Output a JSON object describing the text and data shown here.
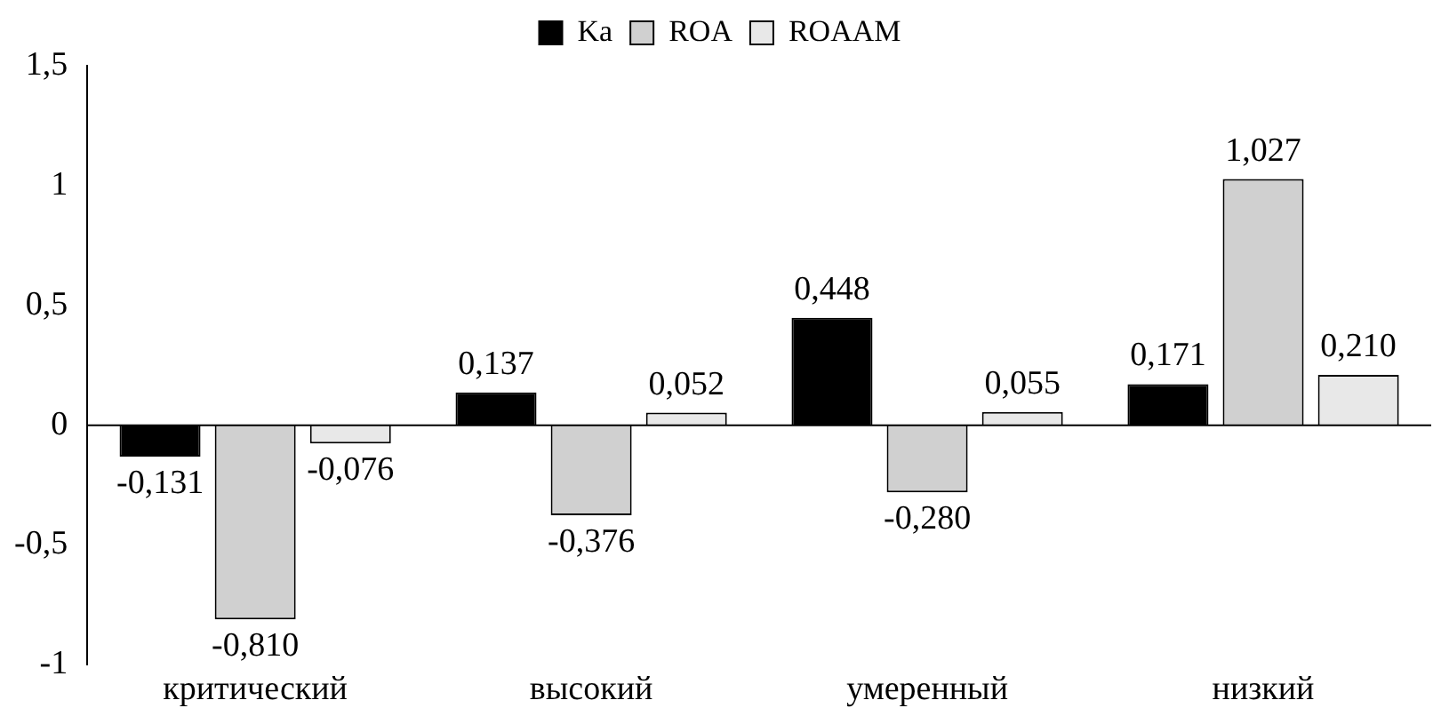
{
  "chart_data": {
    "type": "bar",
    "categories": [
      "критический",
      "высокий",
      "умеренный",
      "низкий"
    ],
    "series": [
      {
        "name": "Ka",
        "color": "#000000",
        "values": [
          -0.131,
          0.137,
          0.448,
          0.171
        ],
        "value_labels": [
          "-0,131",
          "0,137",
          "0,448",
          "0,171"
        ]
      },
      {
        "name": "ROA",
        "color": "#d0d0d0",
        "values": [
          -0.81,
          -0.376,
          -0.28,
          1.027
        ],
        "value_labels": [
          "-0,810",
          "-0,376",
          "-0,280",
          "1,027"
        ]
      },
      {
        "name": "ROAAM",
        "color": "#e8e8e8",
        "values": [
          -0.076,
          0.052,
          0.055,
          0.21
        ],
        "value_labels": [
          "-0,076",
          "0,052",
          "0,055",
          "0,210"
        ]
      }
    ],
    "ylim": [
      -1,
      1.5
    ],
    "yticks": [
      {
        "value": -1,
        "label": "-1"
      },
      {
        "value": -0.5,
        "label": "-0,5"
      },
      0,
      {
        "value": 0.5,
        "label": "0,5"
      },
      1,
      {
        "value": 1.5,
        "label": "1,5"
      }
    ],
    "ref_lines": [
      {
        "axis": "y",
        "value": 0,
        "color": "#000000"
      }
    ],
    "grid": false,
    "legend": "top"
  }
}
